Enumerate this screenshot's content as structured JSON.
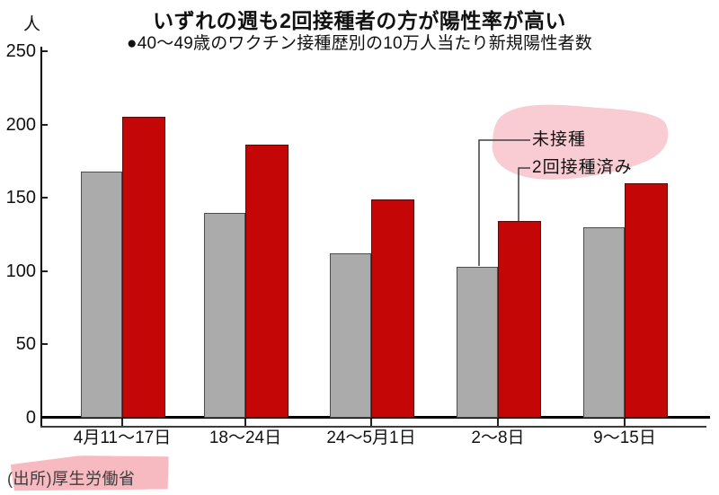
{
  "header": {
    "title": "いずれの週も2回接種者の方が陽性率が高い",
    "subtitle": "●40〜49歳のワクチン接種歴別の10万人当たり新規陽性者数"
  },
  "chart_data": {
    "type": "bar",
    "title": "いずれの週も2回接種者の方が陽性率が高い",
    "subtitle": "●40〜49歳のワクチン接種歴別の10万人当たり新規陽性者数",
    "unit_label": "人",
    "categories": [
      "4月11〜17日",
      "18〜24日",
      "24〜5月1日",
      "2〜8日",
      "9〜15日"
    ],
    "series": [
      {
        "name": "未接種",
        "color": "#ababab",
        "values": [
          168,
          140,
          112,
          103,
          130
        ]
      },
      {
        "name": "2回接種済み",
        "color": "#c40606",
        "values": [
          205,
          186,
          149,
          134,
          160
        ]
      }
    ],
    "ylim": [
      0,
      250
    ],
    "yticks": [
      0,
      50,
      100,
      150,
      200,
      250
    ],
    "grid": false,
    "legend_position": "inside-top-right",
    "legend_highlight_color": "#f8ccd2",
    "leader_line_color": "#3f3f3f"
  },
  "footer": {
    "source": "(出所)厚生労働省",
    "highlight_color": "#f6bac0"
  }
}
